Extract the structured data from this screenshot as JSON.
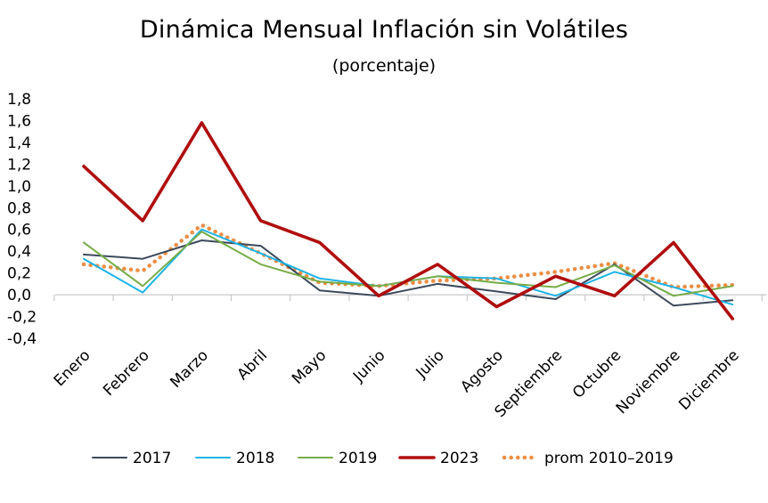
{
  "chart_data": {
    "type": "line",
    "title": "Dinámica Mensual Inflación sin Volátiles",
    "subtitle": "(porcentaje)",
    "xlabel": "",
    "ylabel": "",
    "ylim": [
      -0.4,
      1.8
    ],
    "yticks": [
      "1,8",
      "1,6",
      "1,4",
      "1,2",
      "1,0",
      "0,8",
      "0,6",
      "0,4",
      "0,2",
      "0,0",
      "-0,2",
      "-0,4"
    ],
    "ytick_values": [
      1.8,
      1.6,
      1.4,
      1.2,
      1.0,
      0.8,
      0.6,
      0.4,
      0.2,
      0.0,
      -0.2,
      -0.4
    ],
    "grid": false,
    "legend_position": "bottom",
    "categories": [
      "Enero",
      "Febrero",
      "Marzo",
      "Abril",
      "Mayo",
      "Junio",
      "Julio",
      "Agosto",
      "Septiembre",
      "Octubre",
      "Noviembre",
      "Diciembre"
    ],
    "series": [
      {
        "name": "2017",
        "color": "#3d4a5c",
        "dash": "solid",
        "values": [
          0.37,
          0.33,
          0.5,
          0.45,
          0.04,
          -0.01,
          0.1,
          0.03,
          -0.04,
          0.28,
          -0.1,
          -0.05
        ]
      },
      {
        "name": "2018",
        "color": "#1fb4e6",
        "dash": "solid",
        "values": [
          0.33,
          0.02,
          0.6,
          0.38,
          0.15,
          0.08,
          0.17,
          0.15,
          -0.01,
          0.21,
          0.07,
          -0.09
        ]
      },
      {
        "name": "2019",
        "color": "#77ac47",
        "dash": "solid",
        "values": [
          0.48,
          0.08,
          0.58,
          0.28,
          0.12,
          0.08,
          0.17,
          0.11,
          0.07,
          0.27,
          -0.01,
          0.08
        ]
      },
      {
        "name": "2023",
        "color": "#b00e0e",
        "dash": "solid",
        "values": [
          1.18,
          0.68,
          1.58,
          0.68,
          0.48,
          -0.01,
          0.28,
          -0.11,
          0.17,
          -0.01,
          0.48,
          -0.22
        ]
      },
      {
        "name": "prom 2010–2019",
        "color": "#ec8e43",
        "dash": "dotted",
        "values": [
          0.28,
          0.22,
          0.64,
          0.38,
          0.11,
          0.08,
          0.13,
          0.15,
          0.21,
          0.29,
          0.07,
          0.09
        ]
      }
    ]
  }
}
